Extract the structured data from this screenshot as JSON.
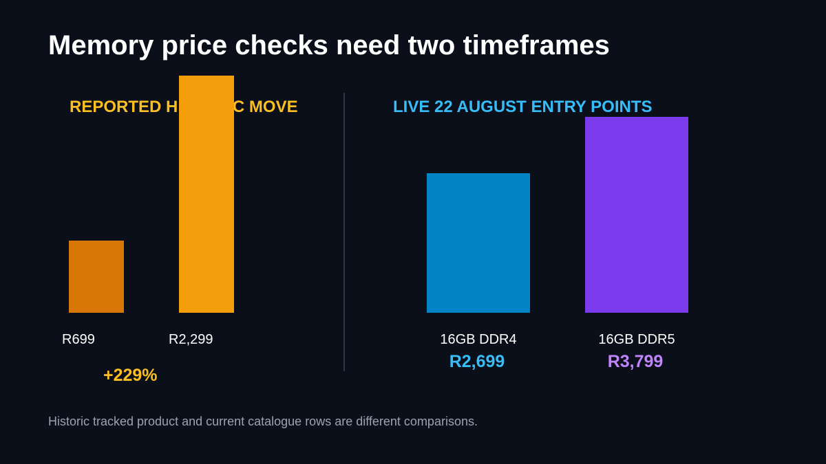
{
  "title": "Memory price checks need two timeframes",
  "footnote": "Historic tracked product and current catalogue rows are different comparisons.",
  "colors": {
    "background": "#0b0f19",
    "historic_heading": "#fbbf24",
    "live_heading": "#38bdf8",
    "divider": "#2c3748"
  },
  "chart_data": [
    {
      "type": "bar",
      "title": "REPORTED HISTORIC MOVE",
      "categories": [
        "R699",
        "R2,299"
      ],
      "values": [
        699,
        2299
      ],
      "value_labels": [
        "R699",
        "R2,299"
      ],
      "bar_colors": [
        "#d97706",
        "#f59e0b"
      ],
      "ylim": [
        0,
        2299
      ],
      "annotation": "+229%",
      "annotation_color": "#fbbf24",
      "grid": false,
      "legend": "none"
    },
    {
      "type": "bar",
      "title": "LIVE 22 AUGUST ENTRY POINTS",
      "categories": [
        "16GB DDR4",
        "16GB DDR5"
      ],
      "values": [
        2699,
        3799
      ],
      "value_labels": [
        "R2,699",
        "R3,799"
      ],
      "bar_colors": [
        "#0284c7",
        "#7c3aed"
      ],
      "label_colors": [
        "#38bdf8",
        "#c084fc"
      ],
      "ylim": [
        0,
        4750
      ],
      "grid": false,
      "legend": "none"
    }
  ]
}
